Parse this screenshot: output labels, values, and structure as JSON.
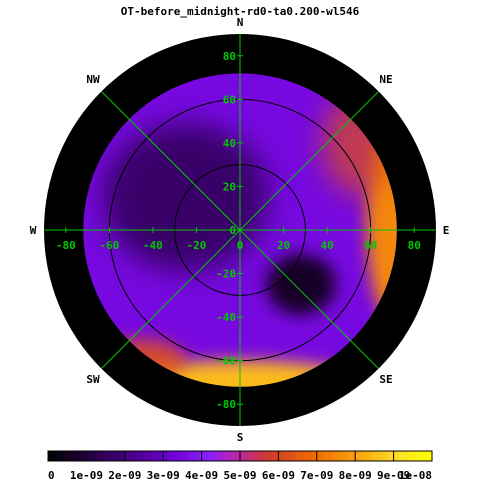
{
  "chart_data": {
    "type": "heatmap",
    "projection": "polar sky map (zenith-centred)",
    "title": "OT-before_midnight-rd0-ta0.200-wl546",
    "directions": {
      "N": "N",
      "NE": "NE",
      "E": "E",
      "SE": "SE",
      "S": "S",
      "SW": "SW",
      "W": "W",
      "NW": "NW"
    },
    "axis_ticks": {
      "x": [
        "-80",
        "-60",
        "-40",
        "-20",
        "0",
        "20",
        "40",
        "60",
        "80"
      ],
      "y": [
        "80",
        "60",
        "40",
        "20",
        "0",
        "-20",
        "-40",
        "-60",
        "-80"
      ]
    },
    "tick_values": [
      -80,
      -60,
      -40,
      -20,
      0,
      20,
      40,
      60,
      80
    ],
    "range": [
      -90,
      90
    ],
    "data_radius": 72,
    "range_circles": [
      30,
      60
    ],
    "colorbar": {
      "labels": [
        "0",
        "1e-09",
        "2e-09",
        "3e-09",
        "4e-09",
        "5e-09",
        "6e-09",
        "7e-09",
        "8e-09",
        "9e-09",
        "1e-08"
      ],
      "values": [
        0,
        1e-09,
        2e-09,
        3e-09,
        4e-09,
        5e-09,
        6e-09,
        7e-09,
        8e-09,
        9e-09,
        1e-08
      ],
      "min": 0,
      "max": 1e-08,
      "palette": "black-purple-orange-yellow"
    },
    "field_features": [
      {
        "name": "background",
        "value": 3.5e-09
      },
      {
        "name": "dark-patch-northwest",
        "x": -25,
        "y": 15,
        "value": 1.5e-09
      },
      {
        "name": "dark-patch-southeast",
        "x": 28,
        "y": -25,
        "value": 6e-10
      },
      {
        "name": "bright-rim-east",
        "direction": "E",
        "value": 7.5e-09
      },
      {
        "name": "bright-rim-south",
        "direction": "S",
        "value": 8.5e-09
      }
    ],
    "grid": true,
    "colors": {
      "background": "#000000",
      "grid": "#00c800",
      "range_circle": "#000000",
      "tick_label": "#00c800"
    }
  }
}
